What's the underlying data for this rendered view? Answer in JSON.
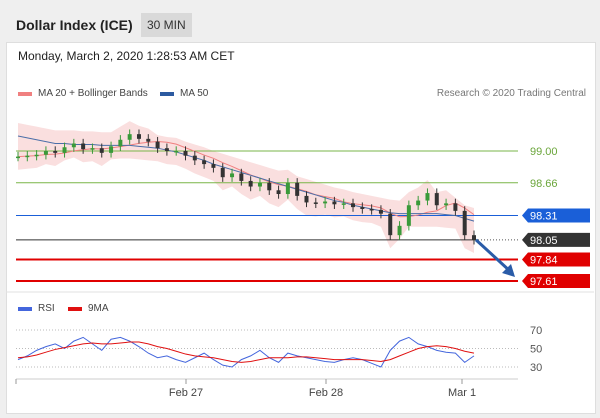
{
  "header": {
    "title": "Dollar Index (ICE)",
    "timeframe": "30 MIN"
  },
  "timestamp": "Monday, March 2, 2020 1:28:53 AM CET",
  "legend_main": [
    {
      "label": "MA 20 + Bollinger Bands",
      "color": "#f08080"
    },
    {
      "label": "MA 50",
      "color": "#2c5aa0"
    }
  ],
  "credit": "Research © 2020 Trading Central",
  "legend_rsi": [
    {
      "label": "RSI",
      "color": "#4466dd"
    },
    {
      "label": "9MA",
      "color": "#e01010"
    }
  ],
  "chart_data": [
    {
      "type": "line",
      "title": "Dollar Index (ICE) 30 MIN",
      "x_labels": [
        "Feb 27",
        "Feb 28",
        "Mar 1"
      ],
      "levels": [
        {
          "value": 99.0,
          "label": "99.00",
          "kind": "resistance",
          "color": "#7ab648"
        },
        {
          "value": 98.66,
          "label": "98.66",
          "kind": "resistance",
          "color": "#7ab648"
        },
        {
          "value": 98.31,
          "label": "98.31",
          "kind": "pivot",
          "color": "#1a5fd8"
        },
        {
          "value": 98.05,
          "label": "98.05",
          "kind": "last",
          "color": "#333333"
        },
        {
          "value": 97.84,
          "label": "97.84",
          "kind": "support",
          "color": "#e00000"
        },
        {
          "value": 97.61,
          "label": "97.61",
          "kind": "support",
          "color": "#e00000"
        }
      ],
      "close_series": [
        98.94,
        98.95,
        98.96,
        99.0,
        98.98,
        99.04,
        99.08,
        99.02,
        99.03,
        98.98,
        99.05,
        99.12,
        99.18,
        99.13,
        99.1,
        99.03,
        99.0,
        99.0,
        98.95,
        98.9,
        98.86,
        98.82,
        98.72,
        98.76,
        98.68,
        98.62,
        98.66,
        98.58,
        98.54,
        98.66,
        98.52,
        98.45,
        98.44,
        98.46,
        98.43,
        98.44,
        98.4,
        98.38,
        98.37,
        98.33,
        98.1,
        98.2,
        98.42,
        98.47,
        98.55,
        98.42,
        98.44,
        98.36,
        98.1,
        98.05
      ],
      "ma50_series": [
        99.16,
        99.14,
        99.12,
        99.1,
        99.08,
        99.08,
        99.07,
        99.07,
        99.07,
        99.06,
        99.06,
        99.06,
        99.06,
        99.05,
        99.04,
        99.03,
        99.01,
        98.99,
        98.96,
        98.93,
        98.9,
        98.86,
        98.83,
        98.8,
        98.77,
        98.74,
        98.71,
        98.68,
        98.65,
        98.62,
        98.59,
        98.56,
        98.53,
        98.5,
        98.47,
        98.45,
        98.42,
        98.4,
        98.38,
        98.36,
        98.34,
        98.33,
        98.33,
        98.33,
        98.33,
        98.33,
        98.32,
        98.31,
        98.28,
        98.25
      ],
      "forecast_arrow": {
        "from": 98.05,
        "to": 97.61
      }
    },
    {
      "type": "line",
      "title": "RSI",
      "levels": [
        70,
        50,
        30
      ],
      "rsi": [
        38,
        42,
        48,
        52,
        55,
        50,
        58,
        62,
        55,
        48,
        60,
        62,
        58,
        52,
        45,
        40,
        42,
        38,
        35,
        40,
        45,
        38,
        32,
        30,
        38,
        42,
        48,
        40,
        35,
        45,
        42,
        40,
        38,
        36,
        35,
        38,
        40,
        38,
        34,
        30,
        48,
        58,
        62,
        55,
        52,
        48,
        46,
        45,
        35,
        42
      ],
      "ma9": [
        40,
        41,
        43,
        46,
        49,
        51,
        53,
        55,
        56,
        55,
        55,
        56,
        57,
        57,
        55,
        52,
        50,
        47,
        44,
        42,
        41,
        40,
        38,
        36,
        35,
        36,
        38,
        40,
        40,
        40,
        41,
        41,
        40,
        39,
        38,
        38,
        38,
        38,
        37,
        36,
        38,
        42,
        46,
        50,
        52,
        53,
        52,
        50,
        47,
        45
      ]
    }
  ]
}
